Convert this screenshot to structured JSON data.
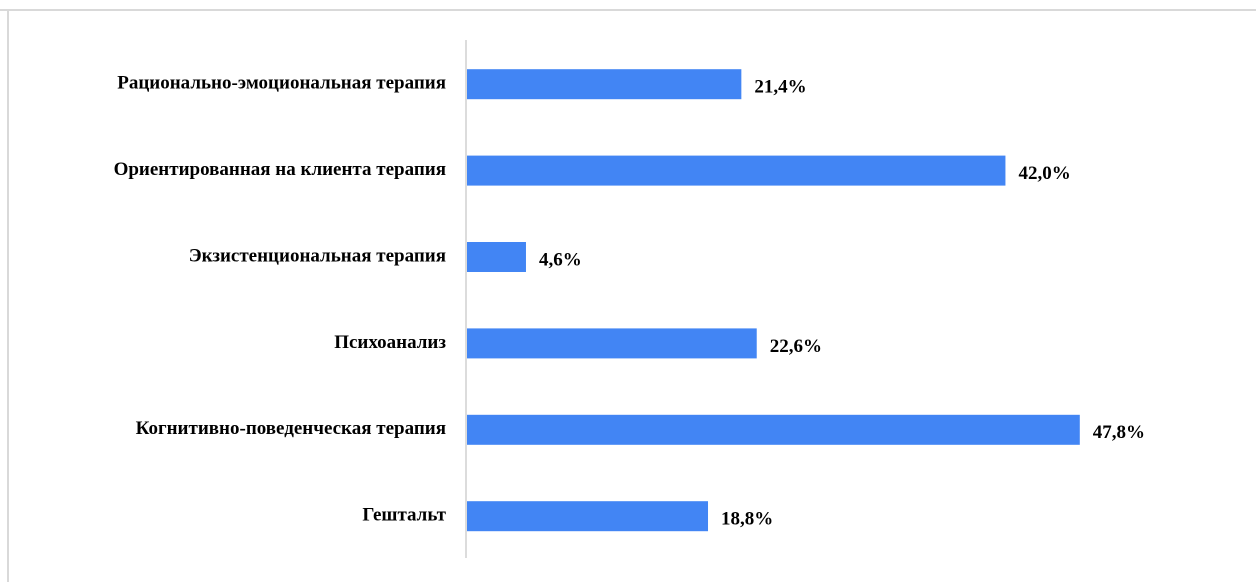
{
  "chart_data": {
    "type": "bar",
    "orientation": "horizontal",
    "categories": [
      "Рационально-эмоциональная терапия",
      "Ориентированная на клиента терапия",
      "Экзистенциональная терапия",
      "Психоанализ",
      "Когнитивно-поведенческая терапия",
      "Гештальт"
    ],
    "values": [
      21.4,
      42.0,
      4.6,
      22.6,
      47.8,
      18.8
    ],
    "value_labels": [
      "21,4%",
      "42,0%",
      "4,6%",
      "22,6%",
      "47,8%",
      "18,8%"
    ],
    "color": "#4285f4"
  }
}
